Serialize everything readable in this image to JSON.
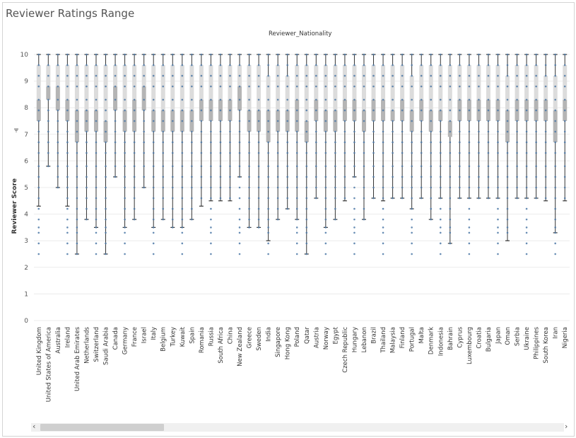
{
  "page": {
    "title": "Reviewer Ratings Range",
    "column_header": "Reviewer_Nationality",
    "sort_icon": "sort-icon"
  },
  "scrollbar": {
    "left_arrow": "‹",
    "right_arrow": "›"
  },
  "chart_data": {
    "type": "box",
    "title": "Reviewer Ratings Range",
    "xlabel": "Reviewer_Nationality",
    "ylabel": "Reviewer Score",
    "ylim": [
      0,
      10
    ],
    "yticks": [
      0,
      1,
      2,
      3,
      4,
      5,
      6,
      7,
      8,
      9,
      10
    ],
    "grid": true,
    "series": [
      {
        "category": "United Kingdom",
        "min": 4.3,
        "q1": 7.5,
        "median": 8.3,
        "q3": 9.6,
        "max": 10
      },
      {
        "category": "United States of America",
        "min": 5.8,
        "q1": 8.3,
        "median": 8.8,
        "q3": 9.6,
        "max": 10
      },
      {
        "category": "Australia",
        "min": 5.0,
        "q1": 7.9,
        "median": 8.8,
        "q3": 9.6,
        "max": 10
      },
      {
        "category": "Ireland",
        "min": 4.3,
        "q1": 7.5,
        "median": 8.3,
        "q3": 9.6,
        "max": 10
      },
      {
        "category": "United Arab Emirates",
        "min": 2.5,
        "q1": 6.7,
        "median": 7.9,
        "q3": 9.6,
        "max": 10
      },
      {
        "category": "Netherlands",
        "min": 3.8,
        "q1": 7.1,
        "median": 7.9,
        "q3": 9.6,
        "max": 10
      },
      {
        "category": "Switzerland",
        "min": 3.5,
        "q1": 7.1,
        "median": 7.9,
        "q3": 9.6,
        "max": 10
      },
      {
        "category": "Saudi Arabia",
        "min": 2.5,
        "q1": 6.7,
        "median": 7.5,
        "q3": 9.6,
        "max": 10
      },
      {
        "category": "Canada",
        "min": 5.4,
        "q1": 7.9,
        "median": 8.8,
        "q3": 9.6,
        "max": 10
      },
      {
        "category": "Germany",
        "min": 3.5,
        "q1": 7.1,
        "median": 7.9,
        "q3": 9.6,
        "max": 10
      },
      {
        "category": "France",
        "min": 3.8,
        "q1": 7.1,
        "median": 8.3,
        "q3": 9.6,
        "max": 10
      },
      {
        "category": "Israel",
        "min": 5.0,
        "q1": 7.9,
        "median": 8.8,
        "q3": 9.6,
        "max": 10
      },
      {
        "category": "Italy",
        "min": 3.5,
        "q1": 7.1,
        "median": 7.9,
        "q3": 9.6,
        "max": 10
      },
      {
        "category": "Belgium",
        "min": 3.8,
        "q1": 7.1,
        "median": 7.9,
        "q3": 9.6,
        "max": 10
      },
      {
        "category": "Turkey",
        "min": 3.5,
        "q1": 7.1,
        "median": 7.9,
        "q3": 9.6,
        "max": 10
      },
      {
        "category": "Kuwait",
        "min": 3.5,
        "q1": 7.1,
        "median": 7.9,
        "q3": 9.6,
        "max": 10
      },
      {
        "category": "Spain",
        "min": 3.8,
        "q1": 7.1,
        "median": 7.9,
        "q3": 9.6,
        "max": 10
      },
      {
        "category": "Romania",
        "min": 4.3,
        "q1": 7.5,
        "median": 8.3,
        "q3": 9.6,
        "max": 10
      },
      {
        "category": "Russia",
        "min": 4.5,
        "q1": 7.5,
        "median": 8.3,
        "q3": 9.6,
        "max": 10
      },
      {
        "category": "South Africa",
        "min": 4.5,
        "q1": 7.5,
        "median": 8.3,
        "q3": 9.6,
        "max": 10
      },
      {
        "category": "China",
        "min": 4.5,
        "q1": 7.5,
        "median": 8.3,
        "q3": 9.6,
        "max": 10
      },
      {
        "category": "New Zealand",
        "min": 5.4,
        "q1": 7.9,
        "median": 8.8,
        "q3": 9.6,
        "max": 10
      },
      {
        "category": "Greece",
        "min": 3.5,
        "q1": 7.1,
        "median": 7.9,
        "q3": 9.6,
        "max": 10
      },
      {
        "category": "Sweden",
        "min": 3.5,
        "q1": 7.1,
        "median": 7.9,
        "q3": 9.6,
        "max": 10
      },
      {
        "category": "India",
        "min": 3.0,
        "q1": 6.7,
        "median": 7.9,
        "q3": 9.2,
        "max": 10
      },
      {
        "category": "Singapore",
        "min": 3.8,
        "q1": 7.1,
        "median": 7.9,
        "q3": 9.6,
        "max": 10
      },
      {
        "category": "Hong Kong",
        "min": 4.2,
        "q1": 7.1,
        "median": 7.9,
        "q3": 9.2,
        "max": 10
      },
      {
        "category": "Poland",
        "min": 3.8,
        "q1": 7.1,
        "median": 8.3,
        "q3": 9.6,
        "max": 10
      },
      {
        "category": "Qatar",
        "min": 2.5,
        "q1": 6.7,
        "median": 7.5,
        "q3": 9.6,
        "max": 10
      },
      {
        "category": "Austria",
        "min": 4.6,
        "q1": 7.5,
        "median": 8.3,
        "q3": 9.6,
        "max": 10
      },
      {
        "category": "Norway",
        "min": 3.5,
        "q1": 7.1,
        "median": 7.9,
        "q3": 9.6,
        "max": 10
      },
      {
        "category": "Egypt",
        "min": 3.8,
        "q1": 7.1,
        "median": 7.9,
        "q3": 9.6,
        "max": 10
      },
      {
        "category": "Czech Republic",
        "min": 4.5,
        "q1": 7.5,
        "median": 8.3,
        "q3": 9.6,
        "max": 10
      },
      {
        "category": "Hungary",
        "min": 5.4,
        "q1": 7.5,
        "median": 8.3,
        "q3": 9.6,
        "max": 10
      },
      {
        "category": "Lebanon",
        "min": 3.8,
        "q1": 7.1,
        "median": 7.9,
        "q3": 9.6,
        "max": 10
      },
      {
        "category": "Brazil",
        "min": 4.6,
        "q1": 7.5,
        "median": 8.3,
        "q3": 9.6,
        "max": 10
      },
      {
        "category": "Thailand",
        "min": 4.5,
        "q1": 7.5,
        "median": 8.3,
        "q3": 9.6,
        "max": 10
      },
      {
        "category": "Malaysia",
        "min": 4.6,
        "q1": 7.5,
        "median": 7.9,
        "q3": 9.6,
        "max": 10
      },
      {
        "category": "Finland",
        "min": 4.6,
        "q1": 7.5,
        "median": 8.3,
        "q3": 9.6,
        "max": 10
      },
      {
        "category": "Portugal",
        "min": 4.2,
        "q1": 7.1,
        "median": 7.9,
        "q3": 9.2,
        "max": 10
      },
      {
        "category": "Malta",
        "min": 4.6,
        "q1": 7.5,
        "median": 8.3,
        "q3": 9.6,
        "max": 10
      },
      {
        "category": "Denmark",
        "min": 3.8,
        "q1": 7.1,
        "median": 7.9,
        "q3": 9.6,
        "max": 10
      },
      {
        "category": "Indonesia",
        "min": 4.6,
        "q1": 7.5,
        "median": 7.9,
        "q3": 9.6,
        "max": 10
      },
      {
        "category": "Bahrain",
        "min": 2.9,
        "q1": 6.9,
        "median": 7.5,
        "q3": 9.6,
        "max": 10
      },
      {
        "category": "Cyprus",
        "min": 4.6,
        "q1": 7.5,
        "median": 8.3,
        "q3": 9.6,
        "max": 10
      },
      {
        "category": "Luxembourg",
        "min": 4.6,
        "q1": 7.5,
        "median": 8.3,
        "q3": 9.6,
        "max": 10
      },
      {
        "category": "Croatia",
        "min": 4.6,
        "q1": 7.5,
        "median": 8.3,
        "q3": 9.6,
        "max": 10
      },
      {
        "category": "Bulgaria",
        "min": 4.6,
        "q1": 7.5,
        "median": 8.3,
        "q3": 9.6,
        "max": 10
      },
      {
        "category": "Japan",
        "min": 4.6,
        "q1": 7.5,
        "median": 8.3,
        "q3": 9.6,
        "max": 10
      },
      {
        "category": "Oman",
        "min": 3.0,
        "q1": 6.7,
        "median": 7.9,
        "q3": 9.2,
        "max": 10
      },
      {
        "category": "Serbia",
        "min": 4.6,
        "q1": 7.5,
        "median": 8.3,
        "q3": 9.6,
        "max": 10
      },
      {
        "category": "Ukraine",
        "min": 4.6,
        "q1": 7.5,
        "median": 8.3,
        "q3": 9.6,
        "max": 10
      },
      {
        "category": "Philippines",
        "min": 4.6,
        "q1": 7.5,
        "median": 8.3,
        "q3": 9.6,
        "max": 10
      },
      {
        "category": "South Korea",
        "min": 4.5,
        "q1": 7.5,
        "median": 8.3,
        "q3": 9.2,
        "max": 10
      },
      {
        "category": "Iran",
        "min": 3.3,
        "q1": 6.7,
        "median": 7.9,
        "q3": 9.2,
        "max": 10
      },
      {
        "category": "Nigeria",
        "min": 4.5,
        "q1": 7.5,
        "median": 8.3,
        "q3": 9.6,
        "max": 10
      }
    ],
    "point_levels": [
      2.5,
      2.9,
      3.3,
      3.5,
      3.8,
      4.2,
      4.6,
      5.0,
      5.4,
      5.8,
      6.3,
      6.7,
      7.1,
      7.5,
      7.9,
      8.3,
      8.8,
      9.2,
      9.6,
      10
    ],
    "colors": {
      "points": "#4e79a7",
      "box_dark": "#b5b5b5",
      "box_light": "#dcdcdc",
      "whisker": "#333333",
      "grid": "#ececec",
      "axis_text": "#555555"
    }
  }
}
